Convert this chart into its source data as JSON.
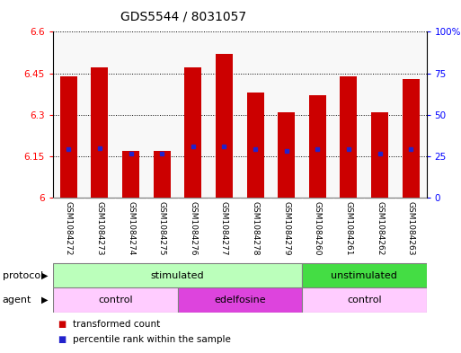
{
  "title": "GDS5544 / 8031057",
  "samples": [
    "GSM1084272",
    "GSM1084273",
    "GSM1084274",
    "GSM1084275",
    "GSM1084276",
    "GSM1084277",
    "GSM1084278",
    "GSM1084279",
    "GSM1084260",
    "GSM1084261",
    "GSM1084262",
    "GSM1084263"
  ],
  "bar_values": [
    6.44,
    6.47,
    6.17,
    6.17,
    6.47,
    6.52,
    6.38,
    6.31,
    6.37,
    6.44,
    6.31,
    6.43
  ],
  "blue_dot_values": [
    6.175,
    6.18,
    6.16,
    6.16,
    6.185,
    6.185,
    6.175,
    6.17,
    6.175,
    6.175,
    6.16,
    6.175
  ],
  "bar_bottom": 6.0,
  "ylim_left": [
    6.0,
    6.6
  ],
  "ylim_right": [
    0,
    100
  ],
  "yticks_left": [
    6.0,
    6.15,
    6.3,
    6.45,
    6.6
  ],
  "yticks_right": [
    0,
    25,
    50,
    75,
    100
  ],
  "ytick_labels_left": [
    "6",
    "6.15",
    "6.3",
    "6.45",
    "6.6"
  ],
  "ytick_labels_right": [
    "0",
    "25",
    "50",
    "75",
    "100%"
  ],
  "bar_color": "#cc0000",
  "dot_color": "#2222cc",
  "bar_width": 0.55,
  "protocol_groups": [
    {
      "label": "stimulated",
      "start": 0,
      "end": 8,
      "color": "#bbffbb"
    },
    {
      "label": "unstimulated",
      "start": 8,
      "end": 12,
      "color": "#44dd44"
    }
  ],
  "agent_groups": [
    {
      "label": "control",
      "start": 0,
      "end": 4,
      "color": "#ffccff"
    },
    {
      "label": "edelfosine",
      "start": 4,
      "end": 8,
      "color": "#dd44dd"
    },
    {
      "label": "control",
      "start": 8,
      "end": 12,
      "color": "#ffccff"
    }
  ],
  "legend_items": [
    {
      "label": "transformed count",
      "color": "#cc0000"
    },
    {
      "label": "percentile rank within the sample",
      "color": "#2222cc"
    }
  ],
  "title_fontsize": 10,
  "tick_fontsize": 7.5,
  "sample_fontsize": 6.5,
  "row_fontsize": 8,
  "legend_fontsize": 7.5
}
